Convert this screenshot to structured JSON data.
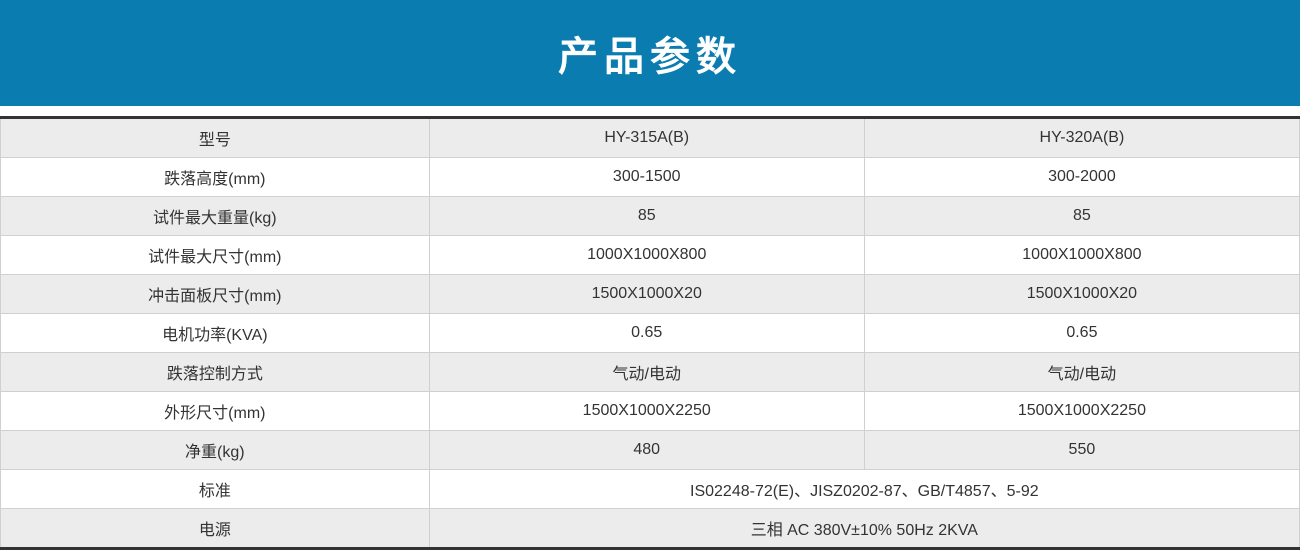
{
  "banner": {
    "text": "产品参数",
    "bg_color": "#0a7cb0",
    "text_color": "#ffffff",
    "font_size": 40
  },
  "table": {
    "type": "table",
    "border_color": "#333333",
    "alt_row_bg": "#ececec",
    "row_bg": "#ffffff",
    "cell_border": "#d0d0d0",
    "font_size": 16,
    "text_color": "#333333",
    "columns": [
      "label",
      "model_a",
      "model_b"
    ],
    "col_widths": [
      "33%",
      "33.5%",
      "33.5%"
    ],
    "rows": [
      {
        "label": "型号",
        "a": "HY-315A(B)",
        "b": "HY-320A(B)"
      },
      {
        "label": "跌落高度(mm)",
        "a": "300-1500",
        "b": "300-2000"
      },
      {
        "label": "试件最大重量(kg)",
        "a": "85",
        "b": "85"
      },
      {
        "label": "试件最大尺寸(mm)",
        "a": "1000X1000X800",
        "b": "1000X1000X800"
      },
      {
        "label": "冲击面板尺寸(mm)",
        "a": "1500X1000X20",
        "b": "1500X1000X20"
      },
      {
        "label": "电机功率(KVA)",
        "a": "0.65",
        "b": "0.65"
      },
      {
        "label": "跌落控制方式",
        "a": "气动/电动",
        "b": "气动/电动"
      },
      {
        "label": "外形尺寸(mm)",
        "a": "1500X1000X2250",
        "b": "1500X1000X2250"
      },
      {
        "label": "净重(kg)",
        "a": "480",
        "b": "550"
      },
      {
        "label": "标准",
        "merged": "IS02248-72(E)、JISZ0202-87、GB/T4857、5-92"
      },
      {
        "label": "电源",
        "merged": "三相 AC 380V±10% 50Hz 2KVA"
      }
    ]
  }
}
